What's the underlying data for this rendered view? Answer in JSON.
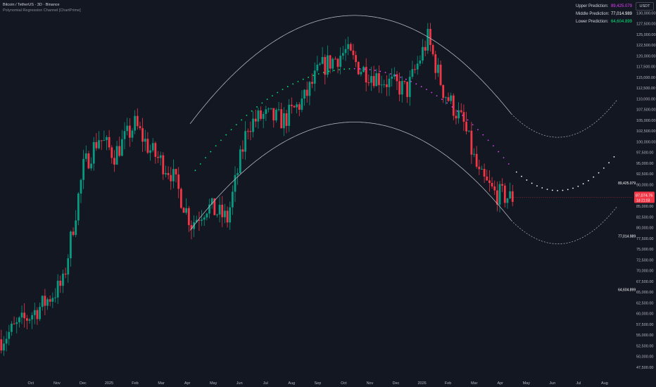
{
  "header": {
    "symbol": "Bitcoin / TetherUS · 3D · Binance",
    "indicator": "Polynomial Regression Channel [ChartPrime]"
  },
  "currency_button": "USDT",
  "prediction_panel": [
    {
      "label": "Upper Prediction:",
      "value": "89,425.079",
      "color": "#e040fb"
    },
    {
      "label": "Middle Prediction:",
      "value": "77,014.989",
      "color": "#ffffff"
    },
    {
      "label": "Lower Prediction:",
      "value": "64,604.899",
      "color": "#00e676"
    }
  ],
  "price_tag": {
    "price": "87,074.76",
    "countdown": "1d 21:03",
    "color": "#f23645"
  },
  "colors": {
    "bg": "#131722",
    "up": "#089981",
    "down": "#f23645",
    "channel": "#b2b5be",
    "text": "#b2b5be",
    "upper": "#e040fb",
    "lower": "#00e676"
  },
  "chart_data": {
    "type": "candlestick",
    "x_ticks": [
      "Oct",
      "Nov",
      "Dec",
      "2025",
      "Feb",
      "Mar",
      "Apr",
      "May",
      "Jun",
      "Jul",
      "Aug",
      "Sep",
      "Oct",
      "Nov",
      "Dec",
      "2026",
      "Feb",
      "Mar",
      "Apr",
      "May",
      "Jun",
      "Jul",
      "Aug"
    ],
    "y_ticks": [
      "130,000.00",
      "127,500.00",
      "125,000.00",
      "122,500.00",
      "120,000.00",
      "117,500.00",
      "115,000.00",
      "112,500.00",
      "110,000.00",
      "107,500.00",
      "105,000.00",
      "102,500.00",
      "100,000.00",
      "97,500.00",
      "95,000.00",
      "92,500.00",
      "90,000.00",
      "87,500.00",
      "85,000.00",
      "82,500.00",
      "80,000.00",
      "77,500.00",
      "75,000.00",
      "72,500.00",
      "70,000.00",
      "67,500.00",
      "65,000.00",
      "62,500.00",
      "60,000.00",
      "57,500.00",
      "55,000.00",
      "52,500.00",
      "50,000.00",
      "47,500.00"
    ],
    "ylim": [
      46500,
      133000
    ],
    "price_anchors": [
      [
        0,
        54000
      ],
      [
        16,
        62000
      ],
      [
        24,
        67000
      ],
      [
        32,
        94000
      ],
      [
        38,
        101000
      ],
      [
        44,
        97000
      ],
      [
        52,
        104000
      ],
      [
        58,
        98000
      ],
      [
        66,
        93000
      ],
      [
        74,
        81000
      ],
      [
        80,
        85000
      ],
      [
        88,
        82000
      ],
      [
        96,
        104000
      ],
      [
        102,
        106000
      ],
      [
        110,
        105000
      ],
      [
        118,
        110000
      ],
      [
        124,
        117000
      ],
      [
        134,
        121000
      ],
      [
        140,
        117000
      ],
      [
        150,
        114000
      ],
      [
        158,
        112000
      ],
      [
        166,
        124000
      ],
      [
        172,
        112000
      ],
      [
        180,
        104000
      ],
      [
        186,
        92000
      ],
      [
        192,
        88000
      ],
      [
        198,
        87000
      ]
    ],
    "last_candle_index": 199,
    "regression_center": 138,
    "regression_peak": 117000,
    "regression_k": 6.16,
    "channel_offset": 12410,
    "forecast_end_index": 240,
    "predictions": {
      "upper": 89425.079,
      "middle": 77014.989,
      "lower": 64604.899
    }
  }
}
